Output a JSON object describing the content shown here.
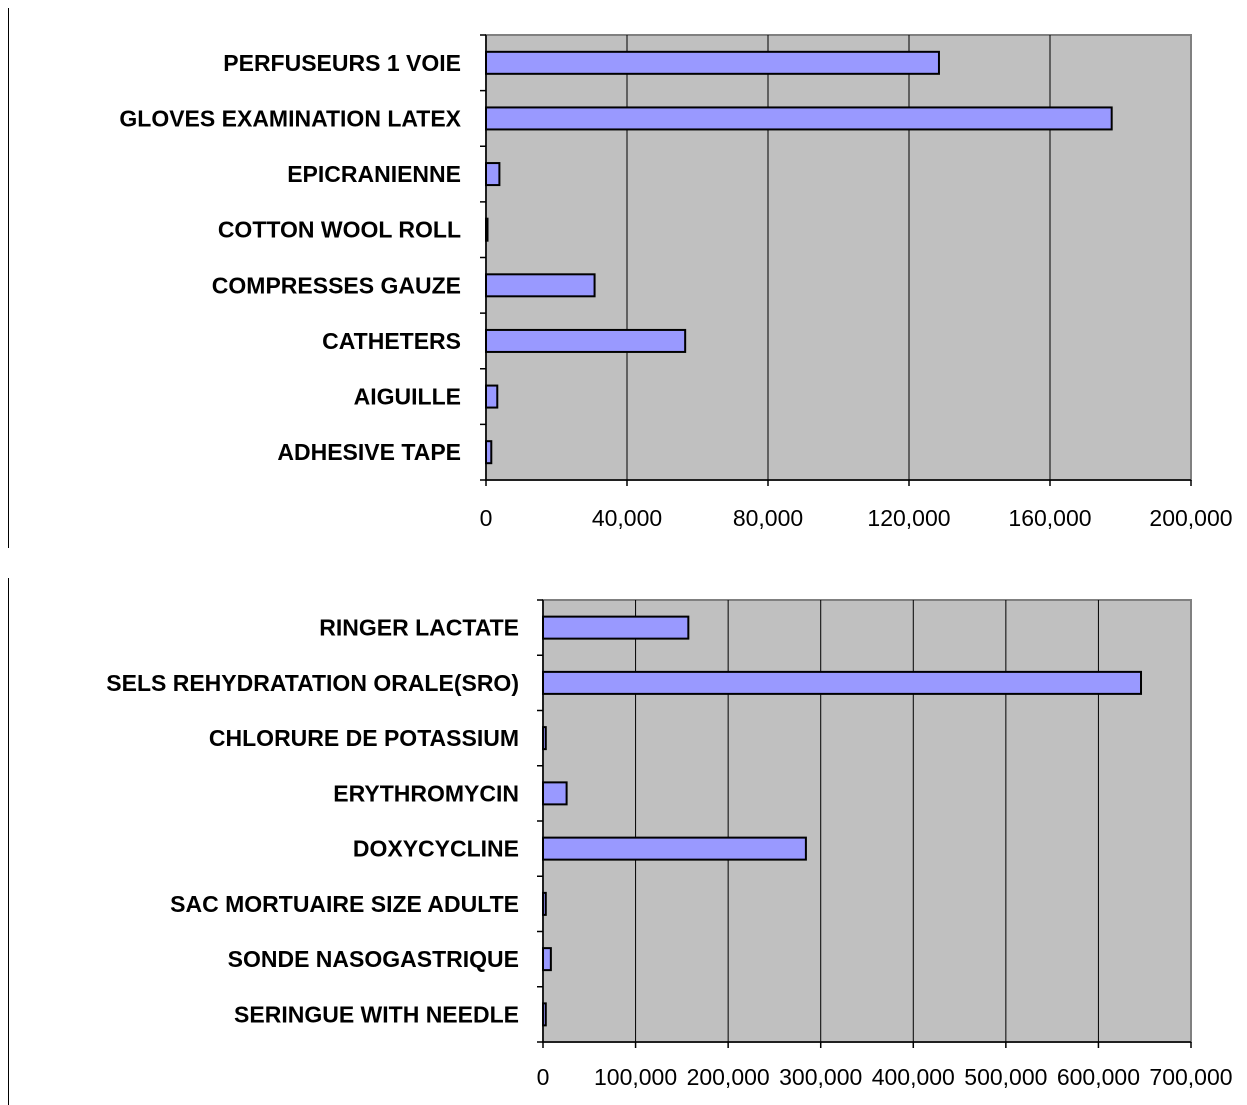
{
  "chart_data": [
    {
      "type": "bar",
      "orientation": "horizontal",
      "categories": [
        "PERFUSEURS 1 VOIE",
        "GLOVES EXAMINATION LATEX",
        "EPICRANIENNE",
        "COTTON WOOL ROLL",
        "COMPRESSES GAUZE",
        "CATHETERS",
        "AIGUILLE",
        "ADHESIVE TAPE"
      ],
      "values": [
        128500,
        177500,
        3800,
        300,
        30800,
        56500,
        3200,
        1500
      ],
      "xlim": [
        0,
        200000
      ],
      "xticks": [
        0,
        40000,
        80000,
        120000,
        160000,
        200000
      ],
      "xtick_labels": [
        "0",
        "40,000",
        "80,000",
        "120,000",
        "160,000",
        "200,000"
      ],
      "title": "",
      "xlabel": "",
      "ylabel": "",
      "grid": "vertical",
      "legend": "none",
      "plot_background": "#c0c0c0",
      "bar_color": "#9999ff"
    },
    {
      "type": "bar",
      "orientation": "horizontal",
      "categories": [
        "RINGER LACTATE",
        "SELS REHYDRATATION ORALE(SRO)",
        "CHLORURE DE POTASSIUM",
        "ERYTHROMYCIN",
        "DOXYCYCLINE",
        "SAC MORTUAIRE SIZE ADULTE",
        "SONDE NASOGASTRIQUE",
        "SERINGUE WITH NEEDLE"
      ],
      "values": [
        157000,
        646000,
        3000,
        25500,
        284000,
        3000,
        8500,
        3000
      ],
      "xlim": [
        0,
        700000
      ],
      "xticks": [
        0,
        100000,
        200000,
        300000,
        400000,
        500000,
        600000,
        700000
      ],
      "xtick_labels": [
        "0",
        "100,000",
        "200,000",
        "300,000",
        "400,000",
        "500,000",
        "600,000",
        "700,000"
      ],
      "title": "",
      "xlabel": "",
      "ylabel": "",
      "grid": "vertical",
      "legend": "none",
      "plot_background": "#c0c0c0",
      "bar_color": "#9999ff"
    }
  ]
}
